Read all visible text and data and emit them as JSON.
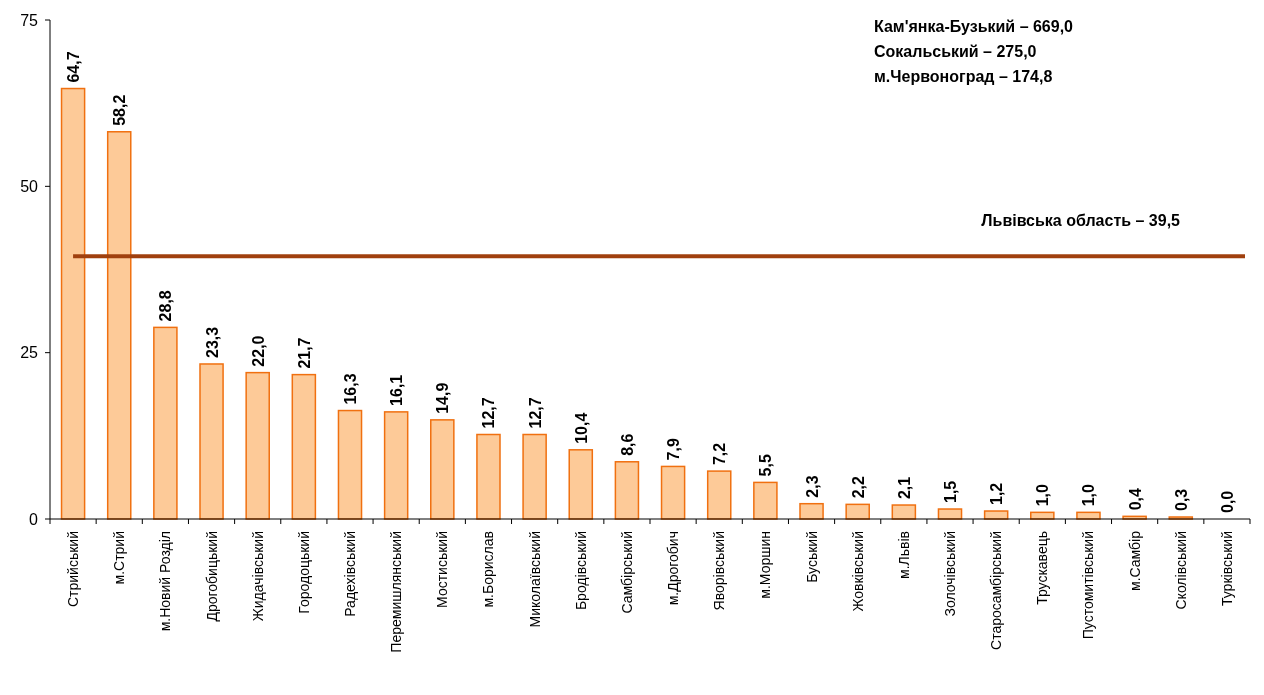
{
  "chart_data": {
    "type": "bar",
    "categories": [
      "Стрийський",
      "м.Стрий",
      "м.Новий Розділ",
      "Дрогобицький",
      "Жидачівський",
      "Городоцький",
      "Радехівський",
      "Перемишлянський",
      "Мостиський",
      "м.Борислав",
      "Миколаївський",
      "Бродівський",
      "Самбірський",
      "м.Дрогобич",
      "Яворівський",
      "м.Моршин",
      "Буський",
      "Жовківський",
      "м.Львів",
      "Золочівський",
      "Старосамбірський",
      "Трускавець",
      "Пустомитівський",
      "м.Самбір",
      "Сколівський",
      "Турківський"
    ],
    "values": [
      64.7,
      58.2,
      28.8,
      23.3,
      22.0,
      21.7,
      16.3,
      16.1,
      14.9,
      12.7,
      12.7,
      10.4,
      8.6,
      7.9,
      7.2,
      5.5,
      2.3,
      2.2,
      2.1,
      1.5,
      1.2,
      1.0,
      1.0,
      0.4,
      0.3,
      0.0
    ],
    "value_labels": [
      "64,7",
      "58,2",
      "28,8",
      "23,3",
      "22,0",
      "21,7",
      "16,3",
      "16,1",
      "14,9",
      "12,7",
      "12,7",
      "10,4",
      "8,6",
      "7,9",
      "7,2",
      "5,5",
      "2,3",
      "2,2",
      "2,1",
      "1,5",
      "1,2",
      "1,0",
      "1,0",
      "0,4",
      "0,3",
      "0,0"
    ],
    "color": "#fdca98",
    "ylim": [
      0,
      75
    ],
    "yticks": [
      0,
      25,
      50,
      75
    ],
    "grid": false,
    "ref_lines": [
      {
        "axis": "y",
        "value": 39.5,
        "label": "Львівська область – 39,5",
        "color": "#a0400e"
      }
    ],
    "annotations": [
      "Кам'янка-Бузький – 669,0",
      "Сокальський – 275,0",
      "м.Червоноград – 174,8"
    ]
  }
}
